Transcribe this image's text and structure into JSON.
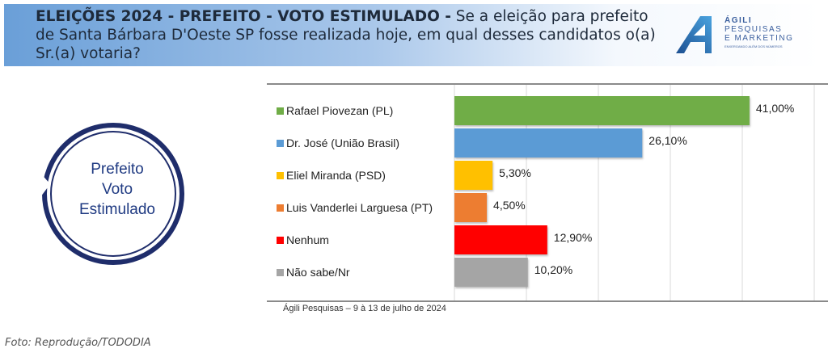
{
  "header": {
    "title_bold": "ELEIÇÕES 2024 - PREFEITO - VOTO ESTIMULADO -",
    "title_rest": " Se a eleição para prefeito de Santa Bárbara D'Oeste SP fosse realizada hoje, em qual desses candidatos o(a) Sr.(a) votaria?"
  },
  "logo": {
    "line1": "ÁGILI",
    "line2": "PESQUISAS",
    "line3": "E MARKETING",
    "tagline": "ENXERGANDO ALÉM DOS NÚMEROS"
  },
  "circle": {
    "line1": "Prefeito",
    "line2": "Voto",
    "line3": "Estimulado"
  },
  "chart_data": {
    "type": "bar",
    "orientation": "horizontal",
    "categories": [
      "Rafael Piovezan (PL)",
      "Dr. José (União Brasil)",
      "Eliel Miranda (PSD)",
      "Luis Vanderlei Larguesa (PT)",
      "Nenhum",
      "Não sabe/Nr"
    ],
    "values": [
      41.0,
      26.1,
      5.3,
      4.5,
      12.9,
      10.2
    ],
    "data_labels": [
      "41,00%",
      "26,10%",
      "5,30%",
      "4,50%",
      "12,90%",
      "10,20%"
    ],
    "colors": [
      "#70ad47",
      "#5b9bd5",
      "#ffc000",
      "#ed7d31",
      "#ff0000",
      "#a5a5a5"
    ],
    "xlim": [
      0,
      50
    ],
    "grid": true,
    "legend": "left"
  },
  "source": "Ágili Pesquisas – 9 à 13 de julho de 2024",
  "credit": "Foto: Reprodução/TODODIA"
}
